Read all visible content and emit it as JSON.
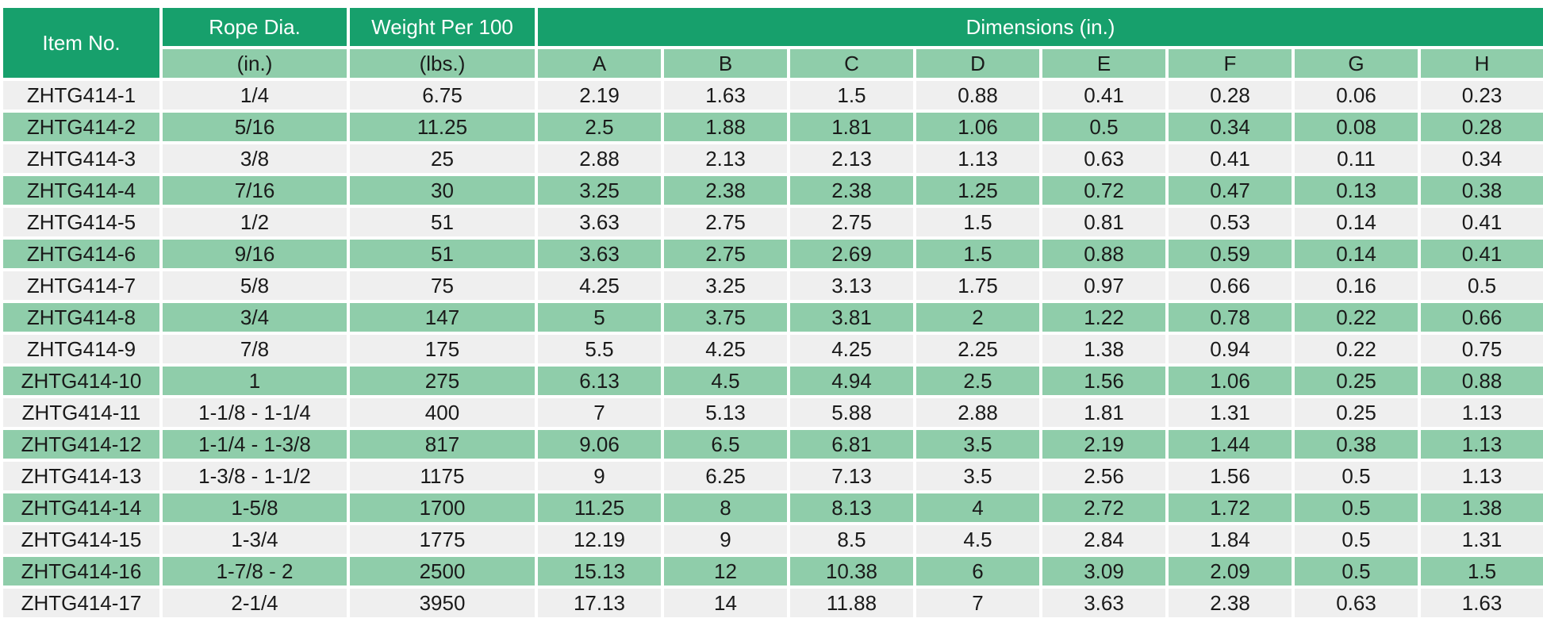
{
  "headers": {
    "item_no": "Item No.",
    "rope_dia": "Rope Dia.",
    "weight": "Weight Per 100",
    "dimensions": "Dimensions (in.)",
    "rope_unit": "(in.)",
    "weight_unit": "(lbs.)",
    "dim_cols": [
      "A",
      "B",
      "C",
      "D",
      "E",
      "F",
      "G",
      "H"
    ]
  },
  "colors": {
    "header_green": "#17a06c",
    "row_green": "#8fcdaa",
    "row_gray": "#efefef"
  },
  "rows": [
    [
      "ZHTG414-1",
      "1/4",
      "6.75",
      "2.19",
      "1.63",
      "1.5",
      "0.88",
      "0.41",
      "0.28",
      "0.06",
      "0.23"
    ],
    [
      "ZHTG414-2",
      "5/16",
      "11.25",
      "2.5",
      "1.88",
      "1.81",
      "1.06",
      "0.5",
      "0.34",
      "0.08",
      "0.28"
    ],
    [
      "ZHTG414-3",
      "3/8",
      "25",
      "2.88",
      "2.13",
      "2.13",
      "1.13",
      "0.63",
      "0.41",
      "0.11",
      "0.34"
    ],
    [
      "ZHTG414-4",
      "7/16",
      "30",
      "3.25",
      "2.38",
      "2.38",
      "1.25",
      "0.72",
      "0.47",
      "0.13",
      "0.38"
    ],
    [
      "ZHTG414-5",
      "1/2",
      "51",
      "3.63",
      "2.75",
      "2.75",
      "1.5",
      "0.81",
      "0.53",
      "0.14",
      "0.41"
    ],
    [
      "ZHTG414-6",
      "9/16",
      "51",
      "3.63",
      "2.75",
      "2.69",
      "1.5",
      "0.88",
      "0.59",
      "0.14",
      "0.41"
    ],
    [
      "ZHTG414-7",
      "5/8",
      "75",
      "4.25",
      "3.25",
      "3.13",
      "1.75",
      "0.97",
      "0.66",
      "0.16",
      "0.5"
    ],
    [
      "ZHTG414-8",
      "3/4",
      "147",
      "5",
      "3.75",
      "3.81",
      "2",
      "1.22",
      "0.78",
      "0.22",
      "0.66"
    ],
    [
      "ZHTG414-9",
      "7/8",
      "175",
      "5.5",
      "4.25",
      "4.25",
      "2.25",
      "1.38",
      "0.94",
      "0.22",
      "0.75"
    ],
    [
      "ZHTG414-10",
      "1",
      "275",
      "6.13",
      "4.5",
      "4.94",
      "2.5",
      "1.56",
      "1.06",
      "0.25",
      "0.88"
    ],
    [
      "ZHTG414-11",
      "1-1/8 - 1-1/4",
      "400",
      "7",
      "5.13",
      "5.88",
      "2.88",
      "1.81",
      "1.31",
      "0.25",
      "1.13"
    ],
    [
      "ZHTG414-12",
      "1-1/4 - 1-3/8",
      "817",
      "9.06",
      "6.5",
      "6.81",
      "3.5",
      "2.19",
      "1.44",
      "0.38",
      "1.13"
    ],
    [
      "ZHTG414-13",
      "1-3/8 - 1-1/2",
      "1175",
      "9",
      "6.25",
      "7.13",
      "3.5",
      "2.56",
      "1.56",
      "0.5",
      "1.13"
    ],
    [
      "ZHTG414-14",
      "1-5/8",
      "1700",
      "11.25",
      "8",
      "8.13",
      "4",
      "2.72",
      "1.72",
      "0.5",
      "1.38"
    ],
    [
      "ZHTG414-15",
      "1-3/4",
      "1775",
      "12.19",
      "9",
      "8.5",
      "4.5",
      "2.84",
      "1.84",
      "0.5",
      "1.31"
    ],
    [
      "ZHTG414-16",
      "1-7/8 - 2",
      "2500",
      "15.13",
      "12",
      "10.38",
      "6",
      "3.09",
      "2.09",
      "0.5",
      "1.5"
    ],
    [
      "ZHTG414-17",
      "2-1/4",
      "3950",
      "17.13",
      "14",
      "11.88",
      "7",
      "3.63",
      "2.38",
      "0.63",
      "1.63"
    ]
  ]
}
